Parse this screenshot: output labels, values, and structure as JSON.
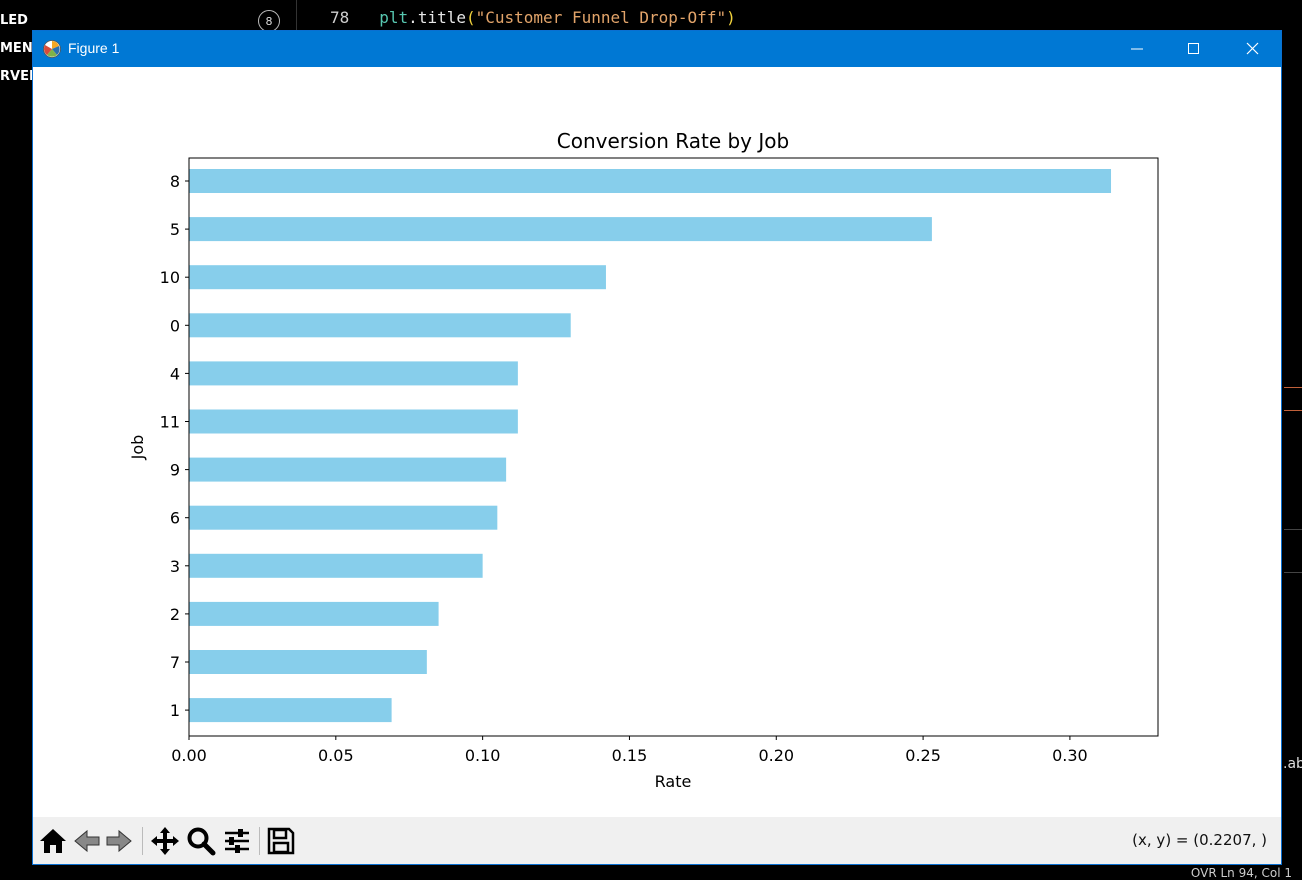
{
  "background_editor": {
    "left_items": [
      "LED",
      "MENI",
      "RVER"
    ],
    "badge": "8",
    "line_number": "78",
    "code": {
      "obj": "plt",
      "dot": ".",
      "func": "title",
      "open": "(",
      "string": "\"Customer Funnel Drop-Off\"",
      "close": ")"
    },
    "right_text": ".ab",
    "status": "OVR    Ln 94, Col 1"
  },
  "window": {
    "title": "Figure 1",
    "accent": "#0078d4"
  },
  "toolbar": {
    "icons": [
      "home-icon",
      "back-icon",
      "forward-icon",
      "pan-icon",
      "zoom-icon",
      "configure-subplots-icon",
      "save-icon"
    ],
    "coords": "(x, y) = (0.2207, )"
  },
  "chart_data": {
    "type": "bar",
    "orientation": "horizontal",
    "title": "Conversion Rate by Job",
    "xlabel": "Rate",
    "ylabel": "Job",
    "categories": [
      "8",
      "5",
      "10",
      "0",
      "4",
      "11",
      "9",
      "6",
      "3",
      "2",
      "7",
      "1"
    ],
    "values": [
      0.314,
      0.253,
      0.142,
      0.13,
      0.112,
      0.112,
      0.108,
      0.105,
      0.1,
      0.085,
      0.081,
      0.069
    ],
    "xlim": [
      0.0,
      0.33
    ],
    "xticks": [
      0.0,
      0.05,
      0.1,
      0.15,
      0.2,
      0.25,
      0.3
    ],
    "xtick_labels": [
      "0.00",
      "0.05",
      "0.10",
      "0.15",
      "0.20",
      "0.25",
      "0.30"
    ],
    "bar_color": "#87ceeb",
    "grid": false,
    "legend": "none"
  }
}
